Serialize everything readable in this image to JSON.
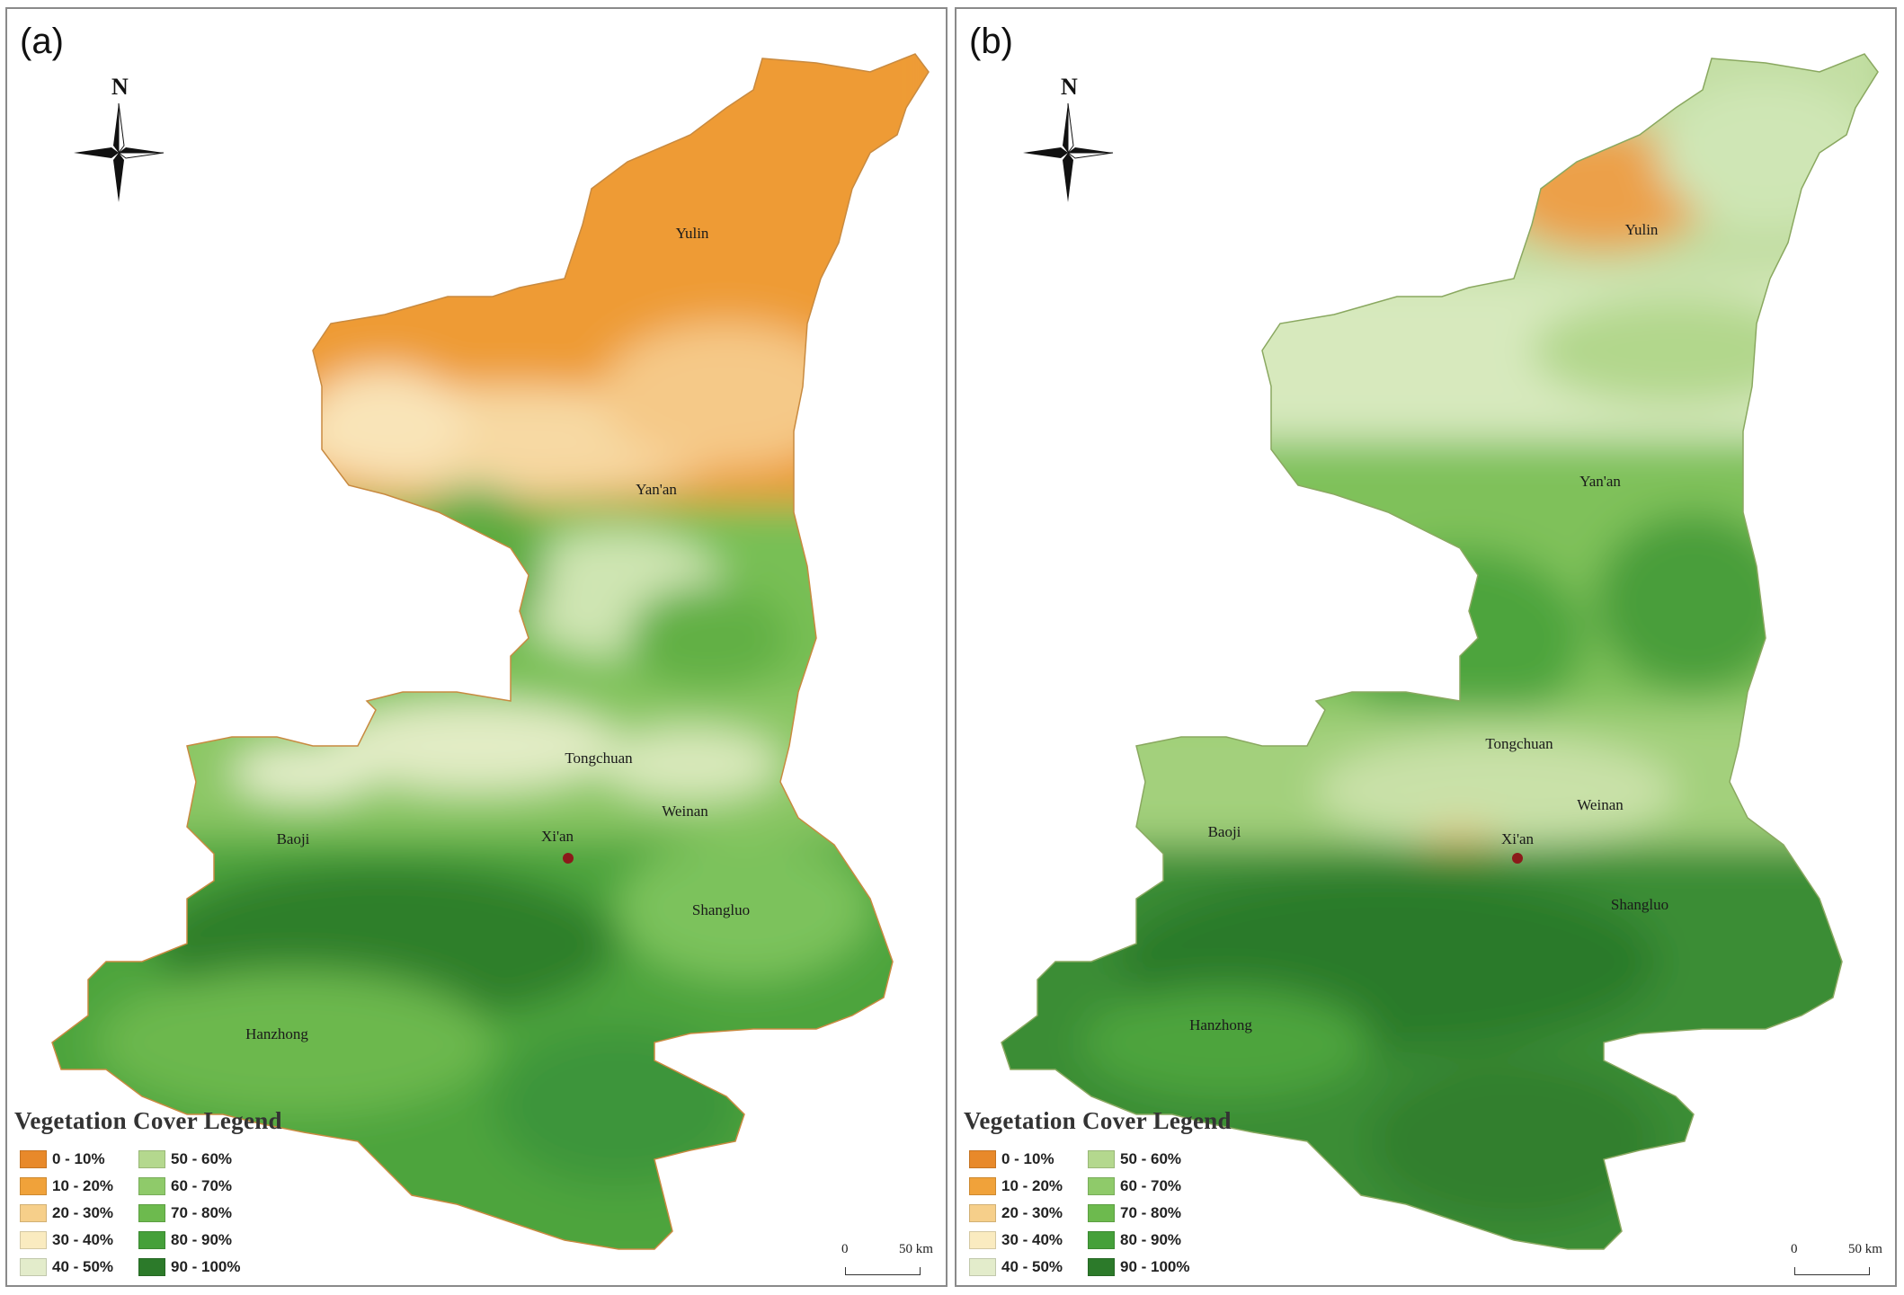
{
  "panels": [
    {
      "id": "a",
      "label": "(a)",
      "north_label": "N",
      "legend_title": "Vegetation Cover Legend",
      "scale": {
        "zero": "0",
        "distance": "50 km"
      },
      "cities": [
        "Yulin",
        "Yan'an",
        "Tongchuan",
        "Weinan",
        "Baoji",
        "Xi'an",
        "Shangluo",
        "Hanzhong"
      ]
    },
    {
      "id": "b",
      "label": "(b)",
      "north_label": "N",
      "legend_title": "Vegetation Cover Legend",
      "scale": {
        "zero": "0",
        "distance": "50 km"
      },
      "cities": [
        "Yulin",
        "Yan'an",
        "Tongchuan",
        "Weinan",
        "Baoji",
        "Xi'an",
        "Shangluo",
        "Hanzhong"
      ]
    }
  ],
  "legend_classes": [
    {
      "label": "0 - 10%",
      "color": "#e8892a"
    },
    {
      "label": "10 - 20%",
      "color": "#f0a23a"
    },
    {
      "label": "20 - 30%",
      "color": "#f6cf8a"
    },
    {
      "label": "30 - 40%",
      "color": "#faebc0"
    },
    {
      "label": "40 - 50%",
      "color": "#e3eccb"
    },
    {
      "label": "50 - 60%",
      "color": "#b4d88e"
    },
    {
      "label": "60 - 70%",
      "color": "#8fca6a"
    },
    {
      "label": "70 - 80%",
      "color": "#6dba4e"
    },
    {
      "label": "80 - 90%",
      "color": "#45a03a"
    },
    {
      "label": "90 - 100%",
      "color": "#2c7a2a"
    }
  ]
}
